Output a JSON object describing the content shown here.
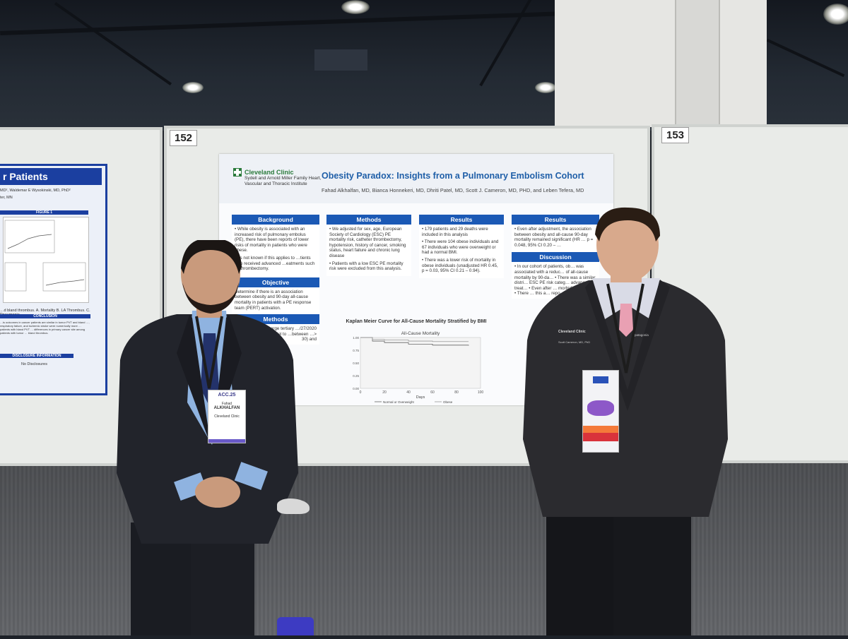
{
  "scene": {
    "board_left_number": "152",
    "board_right_number": "153"
  },
  "poster": {
    "institution": "Cleveland Clinic",
    "institution_sub": "Sydell and Arnold Miller Family Heart, Vascular and Thoracic Institute",
    "title": "Obesity Paradox: Insights from a Pulmonary Embolism Cohort",
    "authors": "Fahad Alkhalfan, MD, Bianca Honnekeri, MD, Dhriti Patel, MD, Scott J. Cameron, MD, PHD, and Leben Tefera, MD",
    "sections": [
      {
        "heading": "Background",
        "paragraphs": [
          "• While obesity is associated with an increased risk of pulmonary embolus (PE), there have been reports of lower risks of mortality in patients who were obese.",
          "…is not known if this applies to …tients who received advanced …eatments such as thrombectomy."
        ]
      },
      {
        "heading": "Methods",
        "paragraphs": [
          "• We adjusted for sex, age, European Society of Cardiology (ESC) PE mortality risk, catheter thrombectomy, hypotension, history of cancer, smoking status, heart failure and chronic lung disease",
          "• Patients with a low ESC PE mortality risk were excluded from this analysis."
        ]
      },
      {
        "heading": "Results",
        "paragraphs": [
          "• 179 patients and 29 deaths were included in this analysis",
          "• There were 104 obese individuals and 67 individuals who were overweight or had a normal BMI.",
          "• There was a lower risk of mortality in obese individuals (unadjusted HR 0.45, p = 0.03, 95% CI 0.21 – 0.94)."
        ]
      },
      {
        "heading": "Results",
        "paragraphs": [
          "• Even after adjustment, the association between obesity and all-cause 90-day mortality remained significant (HR … p = 0.048, 95% CI 0.20 – …"
        ]
      }
    ],
    "objective_heading": "Objective",
    "objective_text": "Determine if there is an association between obesity and 90-day all-cause mortality in patients with a PE response team (PERT) activation.",
    "methods2_heading": "Methods",
    "methods2_text": "…ents with a …arge tertiary …/27/2020 and …variate …l model to …between …> 30) and",
    "discussion_heading": "Discussion",
    "discussion_text": "• In our cohort of patients, ob… was associated with a reduc… of all-cause mortality by 90-da… • There was a similar distri… ESC PE risk categ… advanced treat… • Even after … morbidi… remain… • There … this a… repo…"
  },
  "chart_data": {
    "type": "line",
    "title": "Kaplan Meier Curve for All-Cause Mortality Stratified by BMI",
    "subtitle": "All-Cause Mortality",
    "xlabel": "Days",
    "ylabel": "",
    "x_ticks": [
      "0",
      "20",
      "40",
      "60",
      "80",
      "100"
    ],
    "y_ticks": [
      "1.00",
      "0.75",
      "0.50",
      "0.25",
      "0.00"
    ],
    "xlim": [
      0,
      100
    ],
    "ylim": [
      0,
      1
    ],
    "series": [
      {
        "name": "Normal or Overweight",
        "x": [
          0,
          10,
          20,
          40,
          60,
          90
        ],
        "values": [
          1.0,
          0.93,
          0.9,
          0.87,
          0.85,
          0.84
        ]
      },
      {
        "name": "Obese",
        "x": [
          0,
          10,
          20,
          40,
          60,
          90
        ],
        "values": [
          1.0,
          0.96,
          0.95,
          0.93,
          0.92,
          0.92
        ]
      }
    ],
    "legend": "bottom"
  },
  "left_poster": {
    "title": "r Patients",
    "authors_line": "MD², Waldemar E Wysokinski, MD, PhD²",
    "loc": "ter, MN",
    "figure_label": "FIGURE 1",
    "conclusion_label": "CONCLUSION",
    "conclusion_text": "…is outcomes in cancer patients are similar in tumor PVT and bland …, respiratory failure, and ischemic stroke were numerically more … patients with bland PVT … differences in primary cancer site among patients with tumor … bland thrombus.",
    "disclosure_label": "DISCLOSURE INFORMATION",
    "disclosure_text": "No Disclosures",
    "caption": "…d bland thrombus. A. Mortality B. LA Thrombus. C. Pneumonia"
  },
  "badge_left": {
    "event": "ACC.25",
    "name_line1": "Fahad",
    "name_line2": "ALKHALFAN",
    "org": "Cleveland Clinic"
  },
  "jacket_right": {
    "logo": "Cleveland Clinic",
    "name": "Scott Cameron, MD, PhD",
    "brand": "patagonia"
  }
}
